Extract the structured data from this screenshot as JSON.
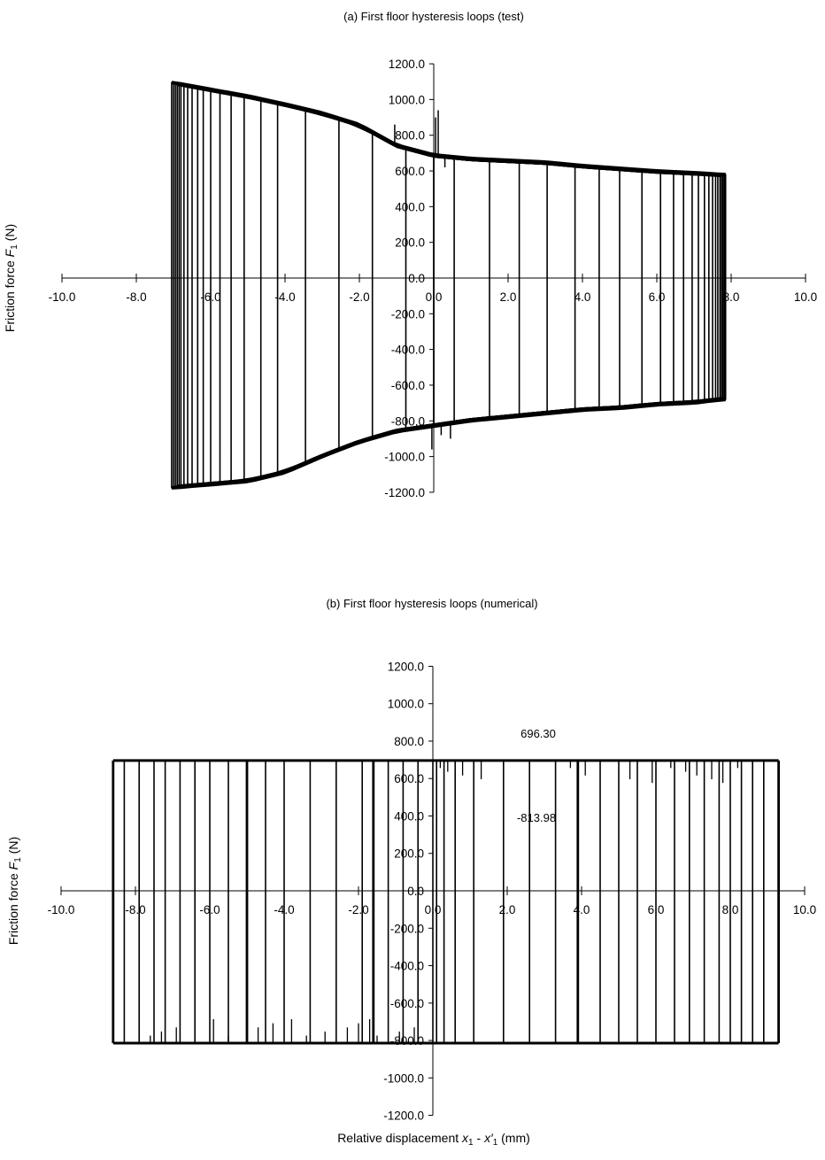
{
  "chart_data": [
    {
      "type": "line",
      "title": "(a) First floor hysteresis loops (test)",
      "ylabel": {
        "text": "Friction force ",
        "italic": "F",
        "sub": "1",
        "unit": " (N)"
      },
      "xlabel": "",
      "xlim": [
        -10,
        10
      ],
      "ylim": [
        -1200,
        1200
      ],
      "x_ticks": [
        "-10.0",
        "-8.0",
        "-6.0",
        "-4.0",
        "-2.0",
        "0.0",
        "2.0",
        "4.0",
        "6.0",
        "8.0",
        "10.0"
      ],
      "y_ticks": [
        "1200.0",
        "1000.0",
        "800.0",
        "600.0",
        "400.0",
        "200.0",
        "0.0",
        "-200.0",
        "-400.0",
        "-600.0",
        "-800.0",
        "-1000.0",
        "-1200.0"
      ],
      "grid": false,
      "legend": "none",
      "upper_envelope": [
        [
          -7.0,
          1095
        ],
        [
          -5.0,
          1020
        ],
        [
          -4.0,
          975
        ],
        [
          -3.0,
          925
        ],
        [
          -2.0,
          860
        ],
        [
          -1.0,
          745
        ],
        [
          0.0,
          690
        ],
        [
          1.0,
          670
        ],
        [
          2.0,
          660
        ],
        [
          3.0,
          650
        ],
        [
          4.0,
          630
        ],
        [
          5.0,
          615
        ],
        [
          6.0,
          600
        ],
        [
          7.0,
          590
        ],
        [
          7.8,
          580
        ]
      ],
      "lower_envelope": [
        [
          -7.0,
          -1175
        ],
        [
          -5.0,
          -1140
        ],
        [
          -4.0,
          -1090
        ],
        [
          -3.0,
          -1000
        ],
        [
          -2.0,
          -920
        ],
        [
          -1.0,
          -860
        ],
        [
          0.0,
          -830
        ],
        [
          1.0,
          -800
        ],
        [
          2.0,
          -780
        ],
        [
          3.0,
          -760
        ],
        [
          4.0,
          -740
        ],
        [
          5.0,
          -730
        ],
        [
          6.0,
          -710
        ],
        [
          7.0,
          -700
        ],
        [
          7.8,
          -680
        ]
      ],
      "loop_left_edges": [
        -7.05,
        -7.0,
        -6.95,
        -6.9,
        -6.85,
        -6.8,
        -6.72,
        -6.62,
        -6.5,
        -6.35,
        -6.2,
        -6.0,
        -5.75,
        -5.45,
        -5.1,
        -4.65,
        -4.2,
        -3.45,
        -2.55,
        -1.65,
        -0.75,
        0.0
      ],
      "loop_right_edges": [
        7.85,
        7.82,
        7.78,
        7.74,
        7.7,
        7.64,
        7.58,
        7.5,
        7.4,
        7.28,
        7.12,
        6.95,
        6.72,
        6.45,
        6.1,
        5.6,
        5.0,
        4.45,
        3.8,
        3.05,
        2.3,
        1.5,
        0.55
      ]
    },
    {
      "type": "line",
      "title": "(b) First floor hysteresis loops (numerical)",
      "ylabel": {
        "text": "Friction force ",
        "italic": "F",
        "sub": "1",
        "unit": " (N)"
      },
      "xlabel": {
        "text": "Relative displacement ",
        "var1": "x",
        "sub1": "1",
        "mid": " - ",
        "var2": "x′",
        "sub2": "1",
        "unit": " (mm)"
      },
      "xlim": [
        -10,
        10
      ],
      "ylim": [
        -1200,
        1200
      ],
      "x_ticks": [
        "-10.0",
        "-8.0",
        "-6.0",
        "-4.0",
        "-2.0",
        "0.0",
        "2.0",
        "4.0",
        "6.0",
        "8.0",
        "10.0"
      ],
      "y_ticks": [
        "1200.0",
        "1000.0",
        "800.0",
        "600.0",
        "400.0",
        "200.0",
        "0.0",
        "-200.0",
        "-400.0",
        "-600.0",
        "-800.0",
        "-1000.0",
        "-1200.0"
      ],
      "grid": false,
      "legend": "none",
      "upper_force": 696.3,
      "lower_force": -813.98,
      "annotations": [
        "696.30",
        "-813.98"
      ],
      "x_min": -8.6,
      "x_max": 9.3,
      "loop_left_edges": [
        -8.6,
        -8.3,
        -7.9,
        -7.5,
        -7.2,
        -6.8,
        -6.4,
        -6.0,
        -5.5,
        -5.0,
        -4.5,
        -4.0,
        -3.3,
        -2.6,
        -1.9,
        -1.6,
        -1.2,
        -0.8,
        -0.4,
        0.0
      ],
      "loop_right_edges": [
        0.1,
        0.3,
        0.6,
        1.1,
        1.9,
        2.6,
        3.3,
        3.9,
        4.5,
        5.0,
        5.5,
        6.0,
        6.5,
        6.9,
        7.3,
        7.7,
        8.0,
        8.3,
        8.6,
        8.9,
        9.3
      ]
    }
  ]
}
